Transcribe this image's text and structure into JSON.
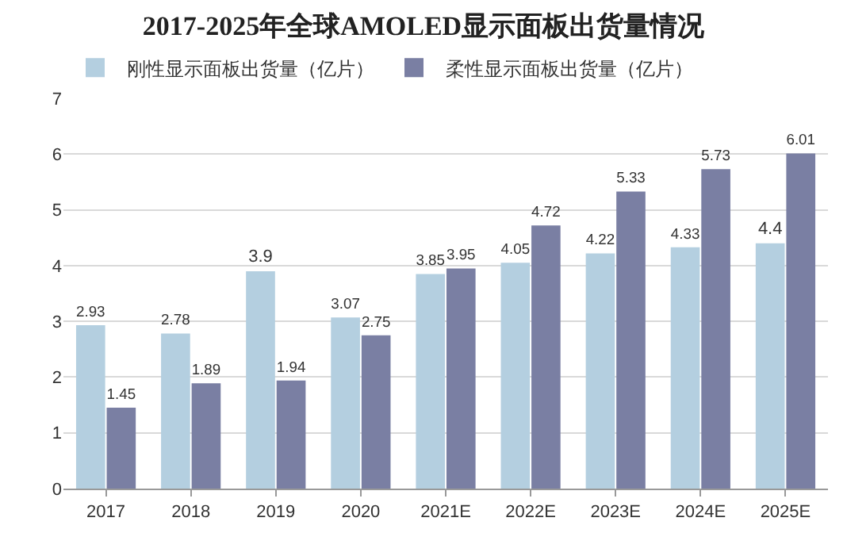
{
  "chart_data": {
    "type": "bar",
    "title": "2017-2025年全球AMOLED显示面板出货量情况",
    "categories": [
      "2017",
      "2018",
      "2019",
      "2020",
      "2021E",
      "2022E",
      "2023E",
      "2024E",
      "2025E"
    ],
    "series": [
      {
        "name": "刚性显示面板出货量（亿片）",
        "color": "#b4cfe0",
        "values": [
          2.93,
          2.78,
          3.9,
          3.07,
          3.85,
          4.05,
          4.22,
          4.33,
          4.4
        ]
      },
      {
        "name": "柔性显示面板出货量（亿片）",
        "color": "#7a7fa3",
        "values": [
          1.45,
          1.89,
          1.94,
          2.75,
          3.95,
          4.72,
          5.33,
          5.73,
          6.01
        ]
      }
    ],
    "ylim": [
      0,
      7
    ],
    "yticks": [
      0,
      1,
      2,
      3,
      4,
      5,
      6,
      7
    ],
    "grid": "y",
    "legend": "top left",
    "data_labels": true
  }
}
